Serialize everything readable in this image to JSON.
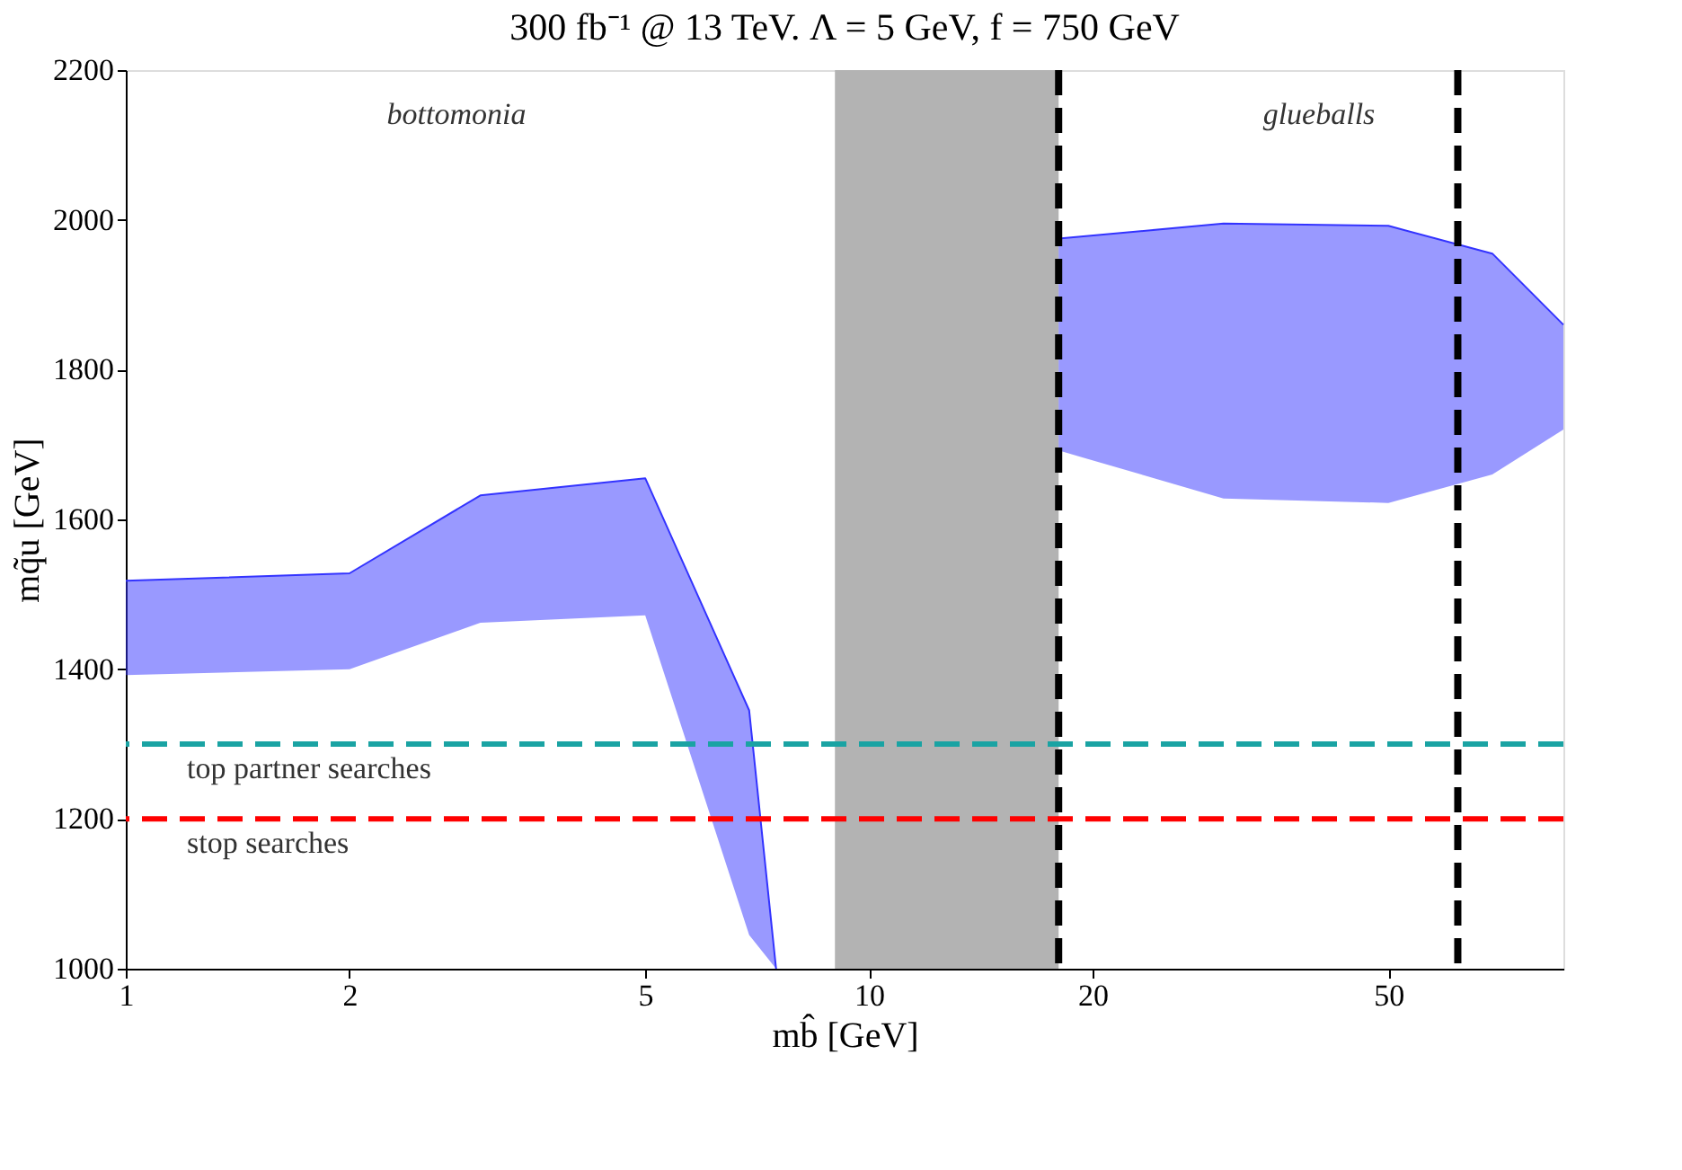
{
  "chart_data": {
    "type": "line",
    "title": "300 fb⁻¹ @ 13 TeV. Λ = 5 GeV, f = 750 GeV",
    "xlabel": "mb̂ [GeV]",
    "ylabel": "mq̃u [GeV]",
    "series": [
      {
        "color": "#3333ff",
        "x": [
          1,
          2,
          3,
          5,
          6.9,
          7.5
        ],
        "values": [
          1518,
          1528,
          1632,
          1655,
          1345,
          1000
        ],
        "upper": [
          1518,
          1528,
          1632,
          1655,
          1345,
          1000
        ],
        "lower": [
          1392,
          1400,
          1462,
          1472,
          1045,
          1000
        ]
      },
      {
        "color": "#3333ff",
        "x": [
          18,
          30,
          50,
          69,
          86
        ],
        "values": [
          1975,
          1995,
          1992,
          1955,
          1860
        ],
        "upper": [
          1975,
          1995,
          1992,
          1955,
          1860
        ],
        "lower": [
          1692,
          1628,
          1622,
          1660,
          1720
        ]
      }
    ],
    "log": "x",
    "xlim": [
      1,
      86
    ],
    "xticks": [
      1,
      2,
      5,
      10,
      20,
      50
    ],
    "ylim": [
      1000,
      2200
    ],
    "yticks": [
      1000,
      1200,
      1400,
      1600,
      1800,
      2000,
      2200
    ],
    "grid": false,
    "bands": [
      {
        "axis": "x",
        "from": 9,
        "to": 18,
        "color": "#b3b3b3"
      }
    ],
    "ref_lines": [
      {
        "axis": "x",
        "value": 18,
        "color": "#000000",
        "line_style": "dashed"
      },
      {
        "axis": "x",
        "value": 62,
        "color": "#000000",
        "line_style": "dashed"
      },
      {
        "axis": "y",
        "value": 1300,
        "label": "top partner searches",
        "color": "#1aa3a3",
        "line_style": "dashed"
      },
      {
        "axis": "y",
        "value": 1200,
        "label": "stop searches",
        "color": "#ff0000",
        "line_style": "dashed"
      }
    ],
    "annotations": [
      "bottomonia",
      "glueballs"
    ]
  }
}
